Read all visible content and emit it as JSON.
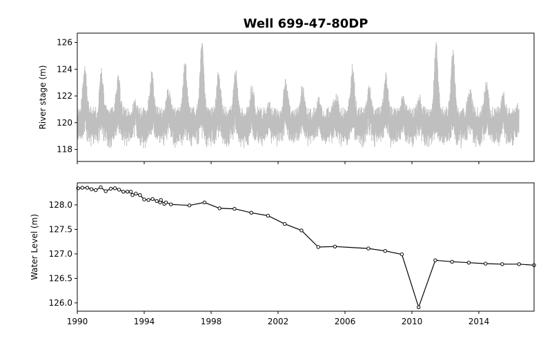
{
  "chart_data": [
    {
      "type": "line",
      "title": "Well 699-47-80DP",
      "xlabel": "",
      "ylabel": "River stage (m)",
      "xlim": [
        1990.0,
        2017.3
      ],
      "ylim": [
        117.1,
        126.7
      ],
      "yticks": [
        118,
        120,
        122,
        124,
        126
      ],
      "xticks": [
        1990,
        1994,
        1998,
        2002,
        2006,
        2010,
        2014
      ],
      "xtick_labels_visible": false,
      "grid": false,
      "series": [
        {
          "name": "",
          "color": "#bfbfbf",
          "x_range": [
            1990.0,
            2016.4
          ],
          "annual_peaks": [
            [
              1990.5,
              124.6
            ],
            [
              1991.4,
              124.2
            ],
            [
              1992.4,
              123.6
            ],
            [
              1993.4,
              121.8
            ],
            [
              1994.4,
              124.0
            ],
            [
              1995.4,
              122.8
            ],
            [
              1996.5,
              124.8
            ],
            [
              1997.5,
              126.3
            ],
            [
              1998.5,
              124.0
            ],
            [
              1999.5,
              124.3
            ],
            [
              2000.5,
              123.0
            ],
            [
              2001.5,
              121.6
            ],
            [
              2002.5,
              123.6
            ],
            [
              2003.5,
              123.0
            ],
            [
              2004.5,
              122.0
            ],
            [
              2005.5,
              122.6
            ],
            [
              2006.5,
              124.6
            ],
            [
              2007.5,
              122.9
            ],
            [
              2008.5,
              124.0
            ],
            [
              2009.5,
              122.2
            ],
            [
              2010.5,
              122.4
            ],
            [
              2011.5,
              126.1
            ],
            [
              2012.5,
              125.7
            ],
            [
              2013.5,
              122.8
            ],
            [
              2014.5,
              123.2
            ],
            [
              2015.5,
              122.4
            ],
            [
              2016.3,
              121.8
            ]
          ],
          "low_envelope": [
            118.0,
            119.0
          ],
          "mean_level": 120.5
        }
      ]
    },
    {
      "type": "line",
      "title": "",
      "xlabel": "",
      "ylabel": "Water Level (m)",
      "xlim": [
        1990.0,
        2017.3
      ],
      "ylim": [
        125.83,
        128.45
      ],
      "yticks": [
        126.0,
        126.5,
        127.0,
        127.5,
        128.0
      ],
      "ytick_labels": [
        "126.0",
        "126.5",
        "127.0",
        "127.5",
        "128.0"
      ],
      "xticks": [
        1990,
        1994,
        1998,
        2002,
        2006,
        2010,
        2014
      ],
      "xtick_labels": [
        "1990",
        "1994",
        "1998",
        "2002",
        "2006",
        "2010",
        "2014"
      ],
      "grid": false,
      "series": [
        {
          "name": "",
          "color": "#000000",
          "marker": "circle-open",
          "x": [
            1990.05,
            1990.3,
            1990.6,
            1990.85,
            1991.1,
            1991.4,
            1991.7,
            1992.0,
            1992.25,
            1992.5,
            1992.75,
            1993.0,
            1993.2,
            1993.3,
            1993.5,
            1993.75,
            1994.0,
            1994.25,
            1994.5,
            1994.75,
            1994.95,
            1995.0,
            1995.2,
            1995.3,
            1995.6,
            1996.7,
            1997.6,
            1998.5,
            1999.4,
            2000.4,
            2001.4,
            2002.4,
            2003.4,
            2004.4,
            2005.4,
            2007.4,
            2008.4,
            2009.4,
            2010.4,
            2011.4,
            2012.4,
            2013.4,
            2014.4,
            2015.4,
            2016.4,
            2017.3
          ],
          "y": [
            128.34,
            128.35,
            128.35,
            128.32,
            128.3,
            128.36,
            128.28,
            128.33,
            128.34,
            128.31,
            128.27,
            128.27,
            128.27,
            128.2,
            128.23,
            128.2,
            128.11,
            128.1,
            128.12,
            128.08,
            128.05,
            128.1,
            128.02,
            128.05,
            128.01,
            127.99,
            128.05,
            127.93,
            127.92,
            127.84,
            127.78,
            127.61,
            127.48,
            127.14,
            127.15,
            127.11,
            127.06,
            126.99,
            125.91,
            126.87,
            126.84,
            126.82,
            126.8,
            126.79,
            126.79,
            126.77
          ]
        }
      ]
    }
  ]
}
